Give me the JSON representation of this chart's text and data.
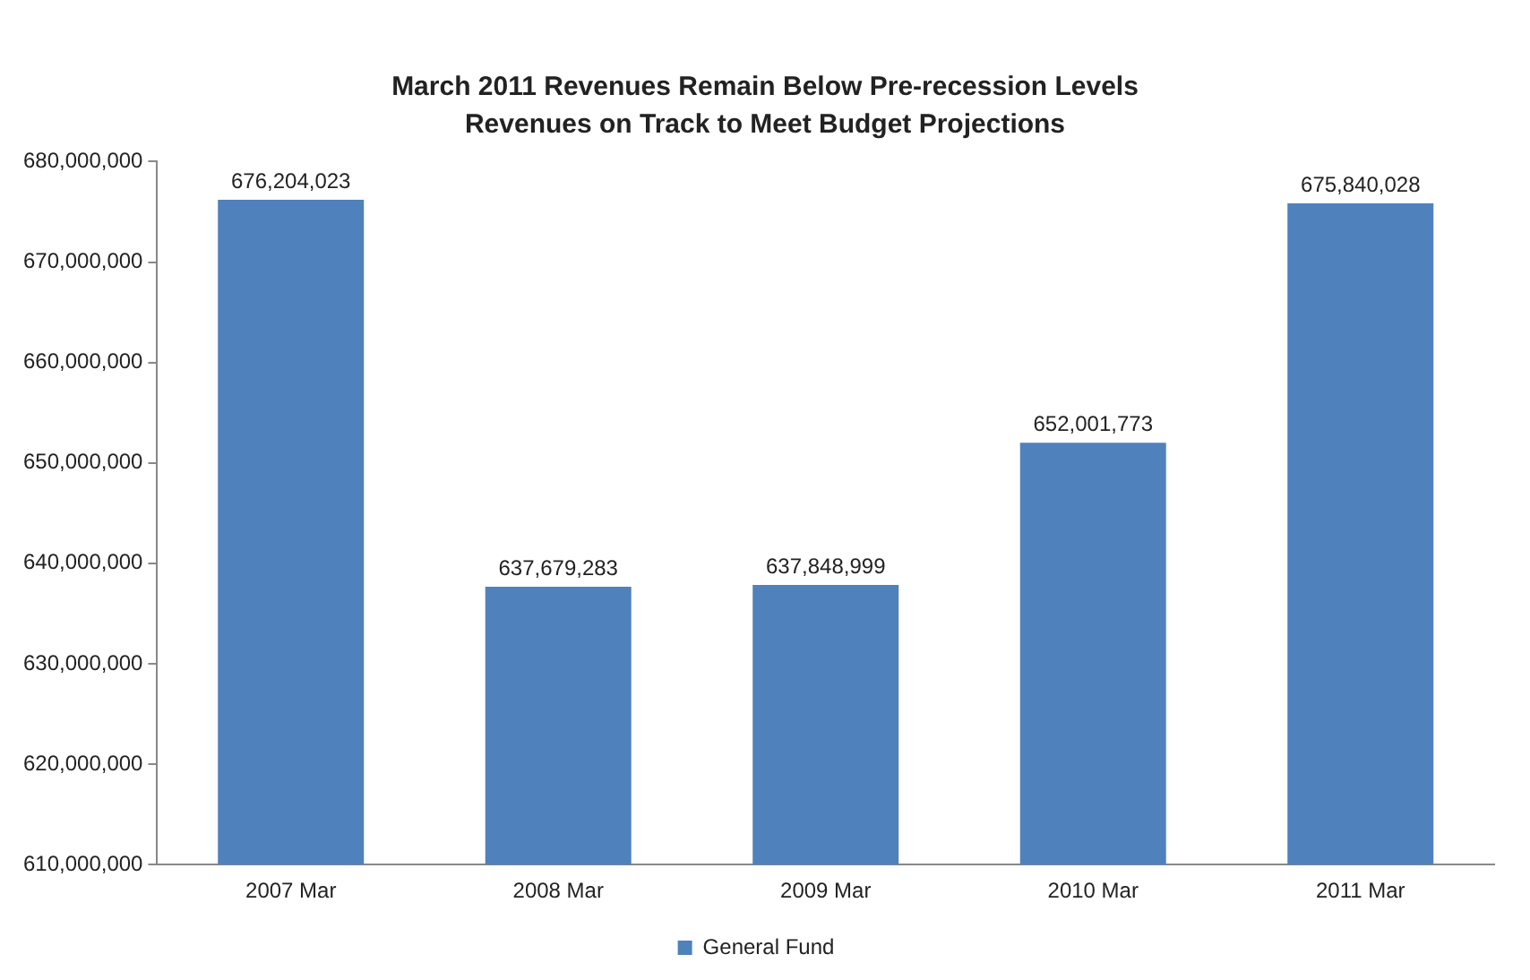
{
  "chart_data": {
    "type": "bar",
    "title": "March 2011 Revenues Remain Below Pre-recession Levels",
    "subtitle": "Revenues on Track to Meet Budget Projections",
    "categories": [
      "2007 Mar",
      "2008 Mar",
      "2009 Mar",
      "2010 Mar",
      "2011 Mar"
    ],
    "series": [
      {
        "name": "General Fund",
        "color": "#4f81bd",
        "values": [
          676204023,
          637679283,
          637848999,
          652001773,
          675840028
        ],
        "value_labels": [
          "676,204,023",
          "637,679,283",
          "637,848,999",
          "652,001,773",
          "675,840,028"
        ]
      }
    ],
    "ylim": [
      610000000,
      680000000
    ],
    "yticks": [
      {
        "value": 610000000,
        "label": "610,000,000"
      },
      {
        "value": 620000000,
        "label": "620,000,000"
      },
      {
        "value": 630000000,
        "label": "630,000,000"
      },
      {
        "value": 640000000,
        "label": "640,000,000"
      },
      {
        "value": 650000000,
        "label": "650,000,000"
      },
      {
        "value": 660000000,
        "label": "660,000,000"
      },
      {
        "value": 670000000,
        "label": "670,000,000"
      },
      {
        "value": 680000000,
        "label": "680,000,000"
      }
    ],
    "grid": false,
    "legend": "bottom"
  }
}
